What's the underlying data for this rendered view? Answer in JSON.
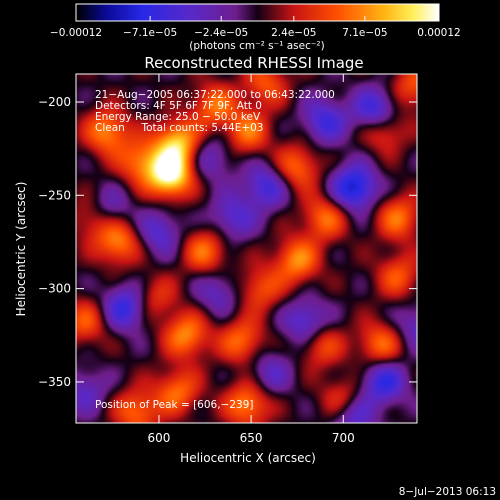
{
  "chart_data": {
    "type": "heatmap",
    "title": "Reconstructed RHESSI Image",
    "xlabel": "Heliocentric X (arcsec)",
    "ylabel": "Heliocentric Y (arcsec)",
    "xlim": [
      555,
      740
    ],
    "ylim": [
      -372,
      -185
    ],
    "x_ticks": [
      {
        "value": 600,
        "label": "600"
      },
      {
        "value": 650,
        "label": "650"
      },
      {
        "value": 700,
        "label": "700"
      }
    ],
    "y_ticks": [
      {
        "value": -200,
        "label": "−200"
      },
      {
        "value": -250,
        "label": "−250"
      },
      {
        "value": -300,
        "label": "−300"
      },
      {
        "value": -350,
        "label": "−350"
      }
    ],
    "colorbar": {
      "range": [
        -0.00012,
        0.00012
      ],
      "unit_label": "(photons cm⁻² s⁻¹ asec⁻²)",
      "ticks": [
        {
          "value": -0.00012,
          "label": "−0.00012"
        },
        {
          "value": -7.1e-05,
          "label": "−7.1e−05"
        },
        {
          "value": -2.4e-05,
          "label": "−2.4e−05"
        },
        {
          "value": 2.4e-05,
          "label": "2.4e−05"
        },
        {
          "value": 7.1e-05,
          "label": "7.1e−05"
        },
        {
          "value": 0.00012,
          "label": "0.00012"
        }
      ]
    },
    "annotations": [
      "21−Aug−2005 06:37:22.000 to 06:43:22.000",
      "Detectors: 4F 5F 6F 7F 9F, Att 0",
      "Energy Range: 25.0 − 50.0 keV",
      "Clean     Total counts: 5.44E+03"
    ],
    "peak_label": "Position of Peak = [606,−239]",
    "peak": {
      "x": 606,
      "y": -239,
      "value": 0.00012
    },
    "sources": [
      {
        "x": 606,
        "y": -239,
        "value": 0.00012
      },
      {
        "x": 610,
        "y": -222,
        "value": 9e-05
      },
      {
        "x": 572,
        "y": -216,
        "value": 7e-05
      },
      {
        "x": 630,
        "y": -202,
        "value": 6e-05
      },
      {
        "x": 648,
        "y": -216,
        "value": 6e-05
      },
      {
        "x": 658,
        "y": -190,
        "value": 5e-05
      },
      {
        "x": 590,
        "y": -232,
        "value": 6e-05
      },
      {
        "x": 675,
        "y": -235,
        "value": 6e-05
      },
      {
        "x": 722,
        "y": -214,
        "value": 6e-05
      },
      {
        "x": 738,
        "y": -192,
        "value": 5e-05
      },
      {
        "x": 690,
        "y": -262,
        "value": 6e-05
      },
      {
        "x": 730,
        "y": -262,
        "value": 6e-05
      },
      {
        "x": 675,
        "y": -285,
        "value": 7e-05
      },
      {
        "x": 730,
        "y": -293,
        "value": 5e-05
      },
      {
        "x": 578,
        "y": -275,
        "value": 7e-05
      },
      {
        "x": 565,
        "y": -262,
        "value": 5e-05
      },
      {
        "x": 625,
        "y": -280,
        "value": 6e-05
      },
      {
        "x": 615,
        "y": -325,
        "value": 7e-05
      },
      {
        "x": 645,
        "y": -328,
        "value": 6e-05
      },
      {
        "x": 688,
        "y": -330,
        "value": 5e-05
      },
      {
        "x": 720,
        "y": -330,
        "value": 6e-05
      },
      {
        "x": 610,
        "y": -355,
        "value": 6e-05
      },
      {
        "x": 648,
        "y": -362,
        "value": 7e-05
      },
      {
        "x": 588,
        "y": -366,
        "value": 6e-05
      },
      {
        "x": 700,
        "y": -360,
        "value": 5e-05
      },
      {
        "x": 560,
        "y": -318,
        "value": 5e-05
      },
      {
        "x": 655,
        "y": -300,
        "value": 5e-05
      },
      {
        "x": 598,
        "y": -305,
        "value": 4e-05
      },
      {
        "x": 690,
        "y": -210,
        "value": -6e-05
      },
      {
        "x": 706,
        "y": -246,
        "value": -9e-05
      },
      {
        "x": 658,
        "y": -245,
        "value": -6e-05
      },
      {
        "x": 718,
        "y": -205,
        "value": -8e-05
      },
      {
        "x": 582,
        "y": -310,
        "value": -7e-05
      },
      {
        "x": 572,
        "y": -258,
        "value": -5e-05
      },
      {
        "x": 680,
        "y": -318,
        "value": -6e-05
      },
      {
        "x": 722,
        "y": -350,
        "value": -7e-05
      },
      {
        "x": 705,
        "y": -368,
        "value": -6e-05
      },
      {
        "x": 640,
        "y": -262,
        "value": -5e-05
      },
      {
        "x": 600,
        "y": -270,
        "value": -5e-05
      },
      {
        "x": 660,
        "y": -345,
        "value": -4e-05
      },
      {
        "x": 628,
        "y": -230,
        "value": -4e-05
      },
      {
        "x": 740,
        "y": -320,
        "value": -4e-05
      },
      {
        "x": 560,
        "y": -355,
        "value": -4e-05
      },
      {
        "x": 632,
        "y": -302,
        "value": -4e-05
      }
    ],
    "colormap": "RHESSI std-gamma (black–blue–purple–red–orange–yellow–white)",
    "grid": false,
    "legend": "none"
  },
  "footer": {
    "timestamp": "8−Jul−2013 06:13"
  }
}
